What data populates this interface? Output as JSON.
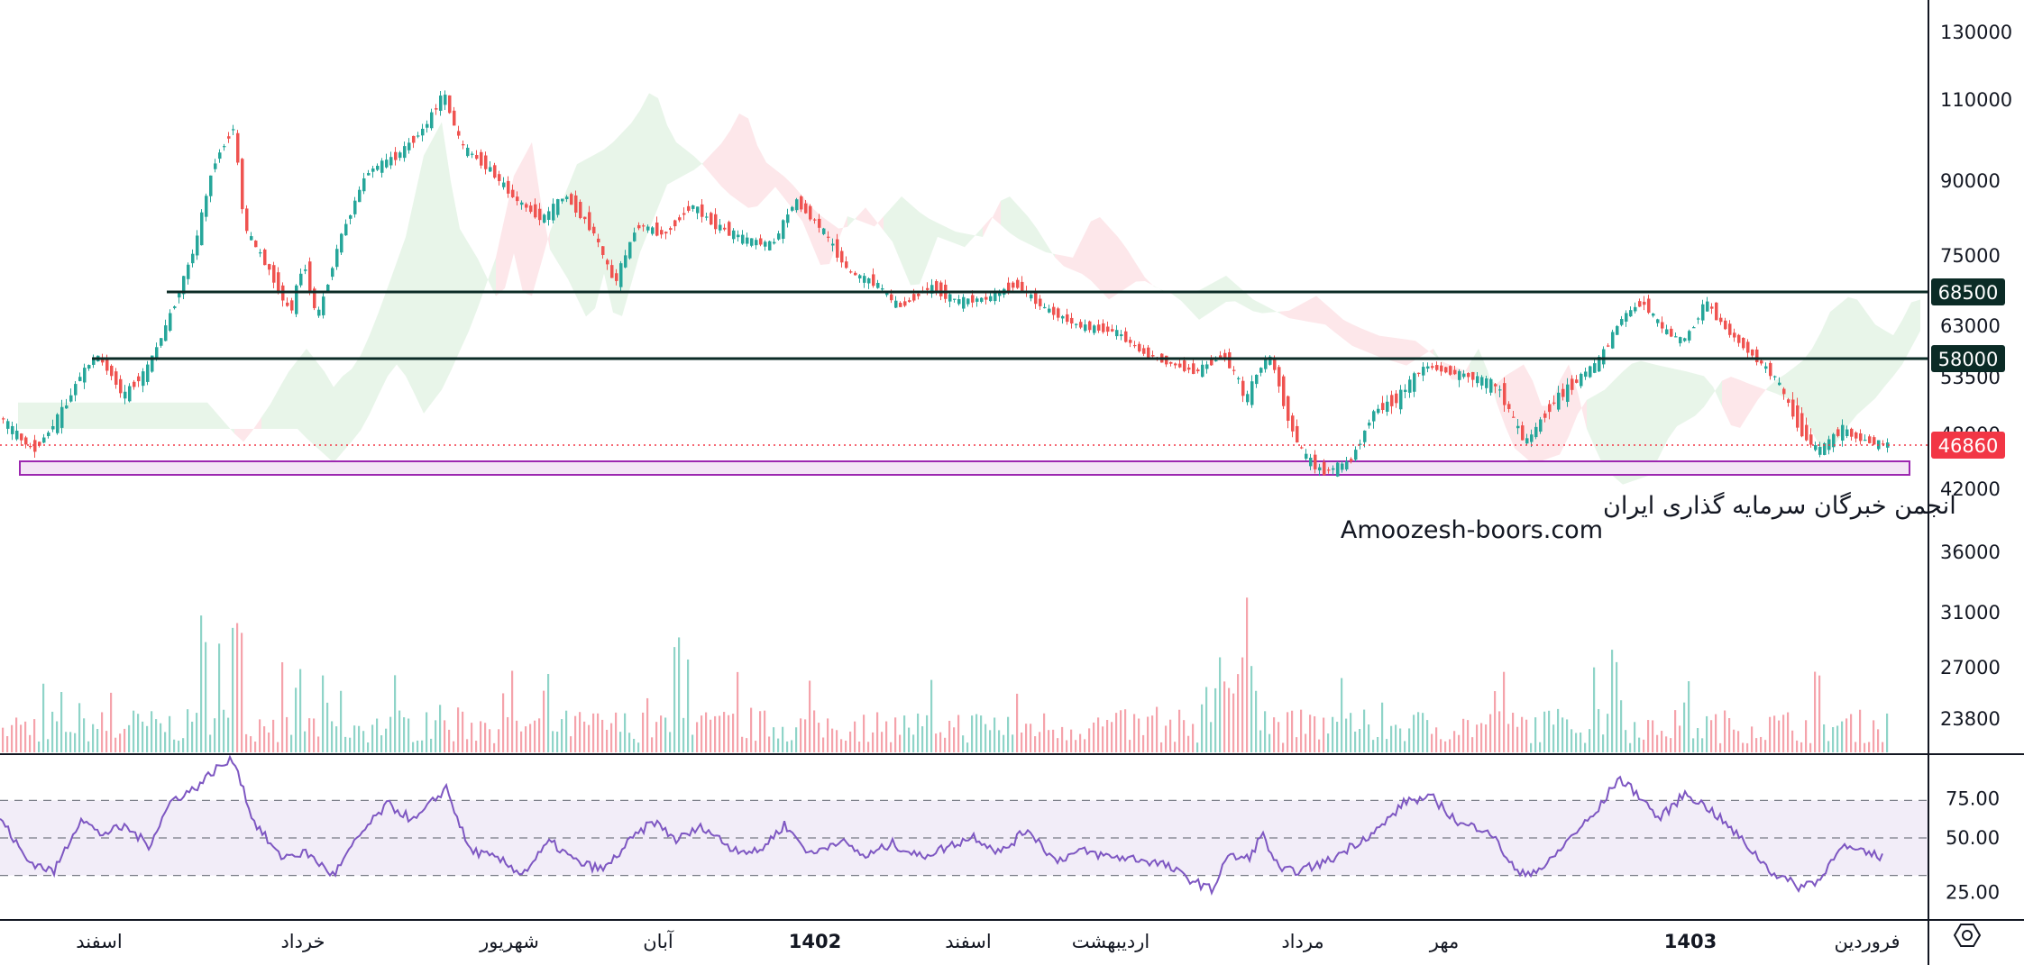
{
  "chart_data": {
    "type": "candlestick",
    "scale": "log",
    "price_axis": {
      "ticks": [
        "130000",
        "110000",
        "90000",
        "75000",
        "63000",
        "53500",
        "48000",
        "42000",
        "36000",
        "31000",
        "27000",
        "23800"
      ],
      "ylim": [
        22500,
        140000
      ]
    },
    "rsi_axis": {
      "ticks": [
        "75.00",
        "50.00",
        "25.00"
      ],
      "band": [
        30,
        70
      ],
      "mid": 50
    },
    "time_axis": [
      "اسفند",
      "خرداد",
      "شهریور",
      "آبان",
      "1402",
      "اسفند",
      "اردیبهشت",
      "مرداد",
      "مهر",
      "1403",
      "فروردین"
    ],
    "bold_time_labels": [
      4,
      9
    ],
    "levels": [
      {
        "value": 68500,
        "label": "68500",
        "color": "#0b2b26"
      },
      {
        "value": 58000,
        "label": "58000",
        "color": "#0b2b26"
      }
    ],
    "last_price": {
      "value": 46860,
      "label": "46860",
      "color": "#f23645"
    },
    "support_zone": {
      "low": 43200,
      "high": 45000,
      "color": "#9c27b0"
    },
    "price_path": [
      [
        0,
        50000
      ],
      [
        40,
        46200
      ],
      [
        75,
        50500
      ],
      [
        110,
        57500
      ],
      [
        140,
        51500
      ],
      [
        165,
        54500
      ],
      [
        185,
        62000
      ],
      [
        200,
        68000
      ],
      [
        220,
        77000
      ],
      [
        240,
        94000
      ],
      [
        262,
        103000
      ],
      [
        275,
        80000
      ],
      [
        300,
        73000
      ],
      [
        325,
        65000
      ],
      [
        340,
        74000
      ],
      [
        355,
        64000
      ],
      [
        380,
        78000
      ],
      [
        410,
        92000
      ],
      [
        445,
        96000
      ],
      [
        475,
        103000
      ],
      [
        495,
        112000
      ],
      [
        515,
        98000
      ],
      [
        545,
        93000
      ],
      [
        575,
        86000
      ],
      [
        605,
        82000
      ],
      [
        630,
        87000
      ],
      [
        660,
        80000
      ],
      [
        685,
        70000
      ],
      [
        710,
        81000
      ],
      [
        740,
        79000
      ],
      [
        770,
        85000
      ],
      [
        795,
        81000
      ],
      [
        830,
        78000
      ],
      [
        860,
        77000
      ],
      [
        885,
        86000
      ],
      [
        915,
        80000
      ],
      [
        945,
        72000
      ],
      [
        975,
        70000
      ],
      [
        1000,
        66000
      ],
      [
        1035,
        69500
      ],
      [
        1065,
        67000
      ],
      [
        1100,
        67500
      ],
      [
        1130,
        70000
      ],
      [
        1160,
        66000
      ],
      [
        1200,
        63000
      ],
      [
        1240,
        62000
      ],
      [
        1270,
        58000
      ],
      [
        1300,
        56000
      ],
      [
        1330,
        54500
      ],
      [
        1360,
        57500
      ],
      [
        1385,
        51000
      ],
      [
        1410,
        57500
      ],
      [
        1430,
        50000
      ],
      [
        1450,
        45500
      ],
      [
        1470,
        43800
      ],
      [
        1500,
        44800
      ],
      [
        1525,
        50000
      ],
      [
        1555,
        51500
      ],
      [
        1585,
        55500
      ],
      [
        1610,
        54500
      ],
      [
        1640,
        53500
      ],
      [
        1665,
        52500
      ],
      [
        1695,
        47000
      ],
      [
        1725,
        51000
      ],
      [
        1750,
        53000
      ],
      [
        1775,
        56000
      ],
      [
        1800,
        64000
      ],
      [
        1825,
        67000
      ],
      [
        1850,
        62000
      ],
      [
        1870,
        60000
      ],
      [
        1895,
        67000
      ],
      [
        1920,
        62000
      ],
      [
        1950,
        57000
      ],
      [
        1975,
        53000
      ],
      [
        2000,
        48500
      ],
      [
        2020,
        46000
      ],
      [
        2045,
        48500
      ],
      [
        2065,
        47500
      ],
      [
        2090,
        46860
      ]
    ],
    "rsi_path": [
      [
        0,
        61
      ],
      [
        30,
        38
      ],
      [
        60,
        32
      ],
      [
        90,
        61
      ],
      [
        110,
        52
      ],
      [
        140,
        56
      ],
      [
        165,
        46
      ],
      [
        190,
        70
      ],
      [
        215,
        76
      ],
      [
        240,
        87
      ],
      [
        260,
        92
      ],
      [
        280,
        60
      ],
      [
        310,
        40
      ],
      [
        340,
        42
      ],
      [
        370,
        30
      ],
      [
        400,
        52
      ],
      [
        430,
        68
      ],
      [
        460,
        59
      ],
      [
        495,
        77
      ],
      [
        520,
        44
      ],
      [
        555,
        38
      ],
      [
        580,
        31
      ],
      [
        610,
        48
      ],
      [
        640,
        37
      ],
      [
        670,
        33
      ],
      [
        700,
        49
      ],
      [
        725,
        59
      ],
      [
        750,
        49
      ],
      [
        780,
        56
      ],
      [
        810,
        45
      ],
      [
        840,
        42
      ],
      [
        870,
        57
      ],
      [
        900,
        41
      ],
      [
        930,
        49
      ],
      [
        960,
        40
      ],
      [
        990,
        47
      ],
      [
        1020,
        40
      ],
      [
        1050,
        45
      ],
      [
        1080,
        51
      ],
      [
        1110,
        42
      ],
      [
        1140,
        55
      ],
      [
        1170,
        38
      ],
      [
        1200,
        43
      ],
      [
        1230,
        40
      ],
      [
        1260,
        39
      ],
      [
        1290,
        36
      ],
      [
        1320,
        28
      ],
      [
        1345,
        22
      ],
      [
        1360,
        40
      ],
      [
        1385,
        39
      ],
      [
        1400,
        52
      ],
      [
        1420,
        32
      ],
      [
        1445,
        33
      ],
      [
        1475,
        38
      ],
      [
        1500,
        46
      ],
      [
        1530,
        55
      ],
      [
        1560,
        70
      ],
      [
        1590,
        71
      ],
      [
        1620,
        57
      ],
      [
        1650,
        55
      ],
      [
        1685,
        30
      ],
      [
        1715,
        35
      ],
      [
        1745,
        52
      ],
      [
        1770,
        63
      ],
      [
        1795,
        82
      ],
      [
        1820,
        72
      ],
      [
        1840,
        60
      ],
      [
        1870,
        74
      ],
      [
        1900,
        64
      ],
      [
        1930,
        50
      ],
      [
        1965,
        32
      ],
      [
        1995,
        24
      ],
      [
        2020,
        28
      ],
      [
        2040,
        46
      ],
      [
        2065,
        42
      ],
      [
        2090,
        40
      ]
    ]
  }
}
